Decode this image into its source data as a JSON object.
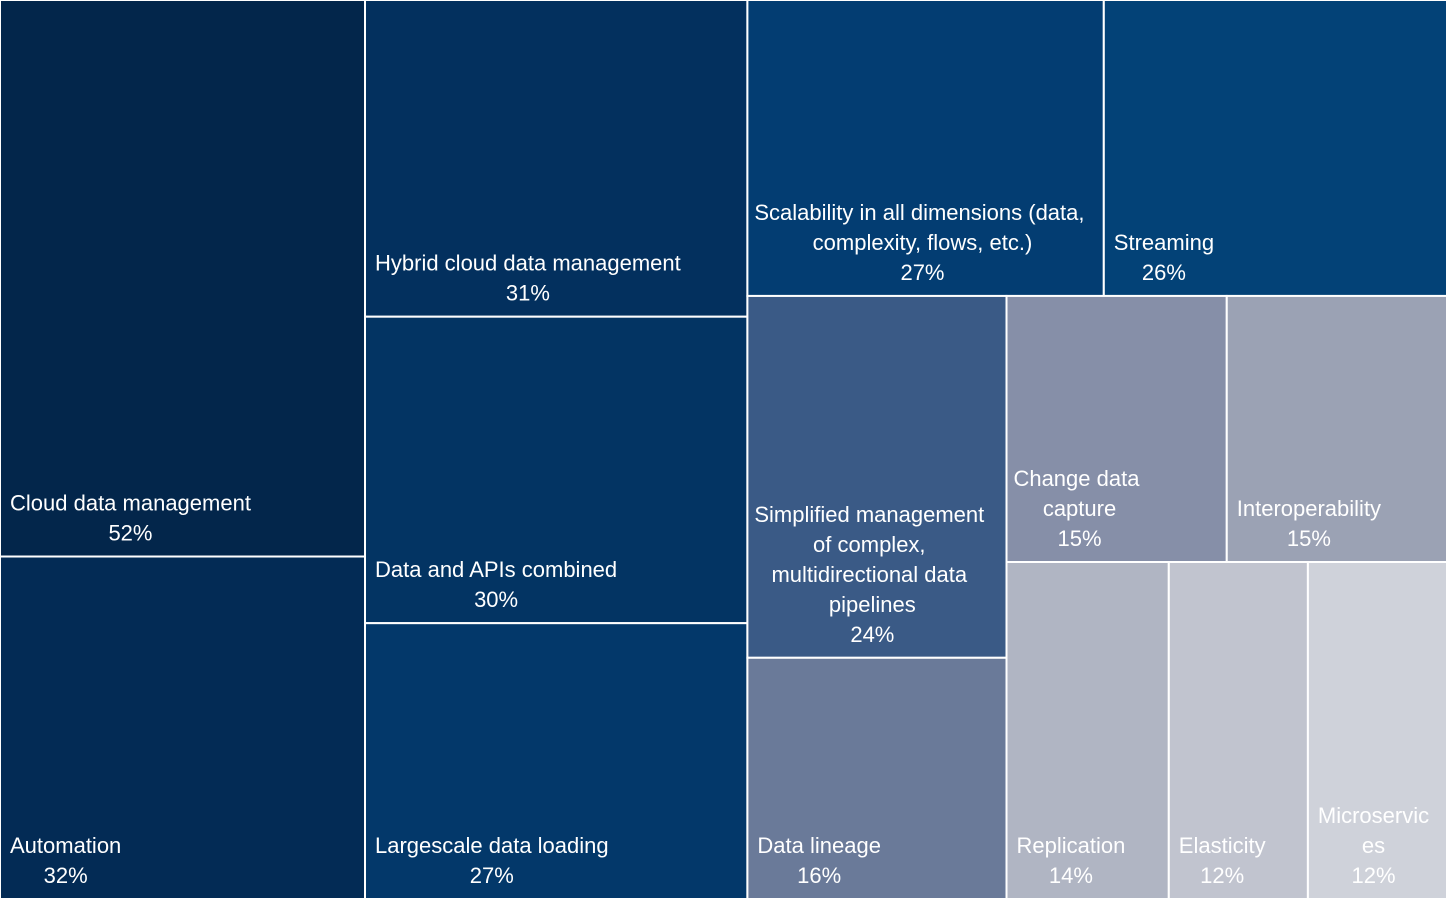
{
  "chart_data": {
    "type": "treemap",
    "categories": [
      "Cloud data management",
      "Automation",
      "Hybrid cloud data management",
      "Data and APIs combined",
      "Largescale data loading",
      "Scalability in all dimensions (data, complexity, flows, etc.)",
      "Streaming",
      "Simplified management of complex, multidirectional data pipelines",
      "Data lineage",
      "Change data capture",
      "Interoperability",
      "Replication",
      "Elasticity",
      "Microservices"
    ],
    "values": [
      52,
      32,
      31,
      30,
      27,
      27,
      26,
      24,
      16,
      15,
      15,
      14,
      12,
      12
    ],
    "value_labels": [
      "52%",
      "32%",
      "31%",
      "30%",
      "27%",
      "27%",
      "26%",
      "24%",
      "16%",
      "15%",
      "15%",
      "14%",
      "12%",
      "12%"
    ],
    "colors": [
      "#03264b",
      "#032b55",
      "#03305e",
      "#033463",
      "#03386a",
      "#033d72",
      "#034277",
      "#3a5a86",
      "#6a7a99",
      "#868fa8",
      "#9ba2b4",
      "#b0b5c3",
      "#c1c4cf",
      "#cfd2da"
    ]
  }
}
